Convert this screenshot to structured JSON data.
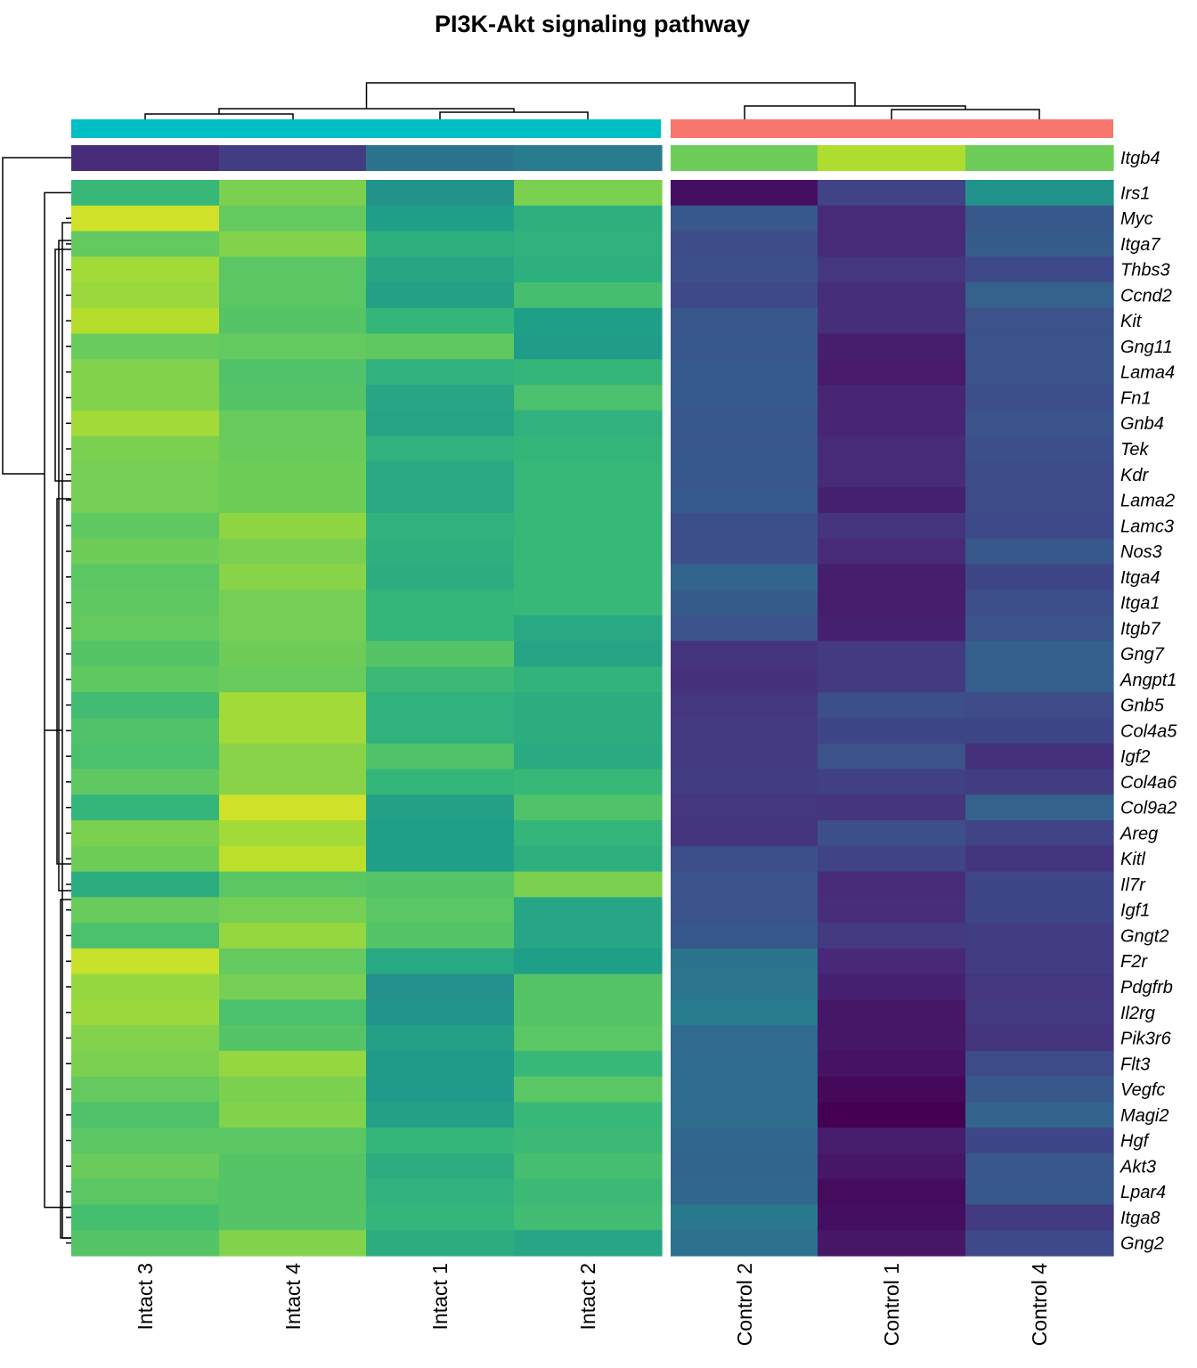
{
  "chart_data": {
    "type": "heatmap",
    "title": "PI3K-Akt signaling pathway",
    "colormap": "viridis",
    "columns": [
      "Intact 3",
      "Intact 4",
      "Intact 1",
      "Intact 2",
      "Control 2",
      "Control 1",
      "Control 4"
    ],
    "column_groups": [
      {
        "color": "#00BFC4",
        "columns": [
          "Intact 3",
          "Intact 4",
          "Intact 1",
          "Intact 2"
        ]
      },
      {
        "color": "#F8766D",
        "columns": [
          "Control 2",
          "Control 1",
          "Control 4"
        ]
      }
    ],
    "separate_row": {
      "name": "Itgb4",
      "values": [
        0.12,
        0.18,
        0.38,
        0.42,
        0.78,
        0.88,
        0.78
      ]
    },
    "rows": [
      {
        "name": "Irs1",
        "values": [
          0.67,
          0.8,
          0.51,
          0.8,
          0.04,
          0.2,
          0.51
        ]
      },
      {
        "name": "Myc",
        "values": [
          0.93,
          0.76,
          0.56,
          0.63,
          0.27,
          0.12,
          0.27
        ]
      },
      {
        "name": "Itga7",
        "values": [
          0.76,
          0.81,
          0.63,
          0.64,
          0.23,
          0.12,
          0.29
        ]
      },
      {
        "name": "Thbs3",
        "values": [
          0.86,
          0.74,
          0.59,
          0.63,
          0.24,
          0.16,
          0.22
        ]
      },
      {
        "name": "Ccnd2",
        "values": [
          0.85,
          0.74,
          0.57,
          0.7,
          0.22,
          0.13,
          0.31
        ]
      },
      {
        "name": "Kit",
        "values": [
          0.89,
          0.73,
          0.66,
          0.56,
          0.27,
          0.13,
          0.25
        ]
      },
      {
        "name": "Gng11",
        "values": [
          0.77,
          0.76,
          0.75,
          0.55,
          0.27,
          0.08,
          0.26
        ]
      },
      {
        "name": "Lama4",
        "values": [
          0.81,
          0.72,
          0.64,
          0.66,
          0.28,
          0.07,
          0.26
        ]
      },
      {
        "name": "Fn1",
        "values": [
          0.81,
          0.73,
          0.59,
          0.71,
          0.28,
          0.1,
          0.24
        ]
      },
      {
        "name": "Gnb4",
        "values": [
          0.86,
          0.77,
          0.58,
          0.64,
          0.27,
          0.1,
          0.26
        ]
      },
      {
        "name": "Tek",
        "values": [
          0.8,
          0.77,
          0.64,
          0.66,
          0.27,
          0.12,
          0.24
        ]
      },
      {
        "name": "Kdr",
        "values": [
          0.79,
          0.78,
          0.6,
          0.67,
          0.27,
          0.12,
          0.23
        ]
      },
      {
        "name": "Lama2",
        "values": [
          0.79,
          0.78,
          0.6,
          0.67,
          0.28,
          0.09,
          0.23
        ]
      },
      {
        "name": "Lamc3",
        "values": [
          0.75,
          0.83,
          0.64,
          0.67,
          0.24,
          0.15,
          0.22
        ]
      },
      {
        "name": "Nos3",
        "values": [
          0.78,
          0.8,
          0.63,
          0.67,
          0.24,
          0.12,
          0.27
        ]
      },
      {
        "name": "Itga4",
        "values": [
          0.74,
          0.82,
          0.62,
          0.67,
          0.32,
          0.08,
          0.21
        ]
      },
      {
        "name": "Itga1",
        "values": [
          0.75,
          0.79,
          0.66,
          0.67,
          0.29,
          0.08,
          0.24
        ]
      },
      {
        "name": "Itgb7",
        "values": [
          0.76,
          0.79,
          0.66,
          0.6,
          0.26,
          0.09,
          0.26
        ]
      },
      {
        "name": "Gng7",
        "values": [
          0.73,
          0.78,
          0.73,
          0.58,
          0.15,
          0.17,
          0.3
        ]
      },
      {
        "name": "Angpt1",
        "values": [
          0.75,
          0.77,
          0.68,
          0.65,
          0.14,
          0.17,
          0.3
        ]
      },
      {
        "name": "Gnb5",
        "values": [
          0.69,
          0.86,
          0.64,
          0.62,
          0.16,
          0.24,
          0.23
        ]
      },
      {
        "name": "Col4a5",
        "values": [
          0.72,
          0.86,
          0.64,
          0.62,
          0.17,
          0.21,
          0.21
        ]
      },
      {
        "name": "Igf2",
        "values": [
          0.71,
          0.82,
          0.72,
          0.61,
          0.17,
          0.25,
          0.14
        ]
      },
      {
        "name": "Col4a6",
        "values": [
          0.75,
          0.82,
          0.66,
          0.67,
          0.18,
          0.19,
          0.18
        ]
      },
      {
        "name": "Col9a2",
        "values": [
          0.66,
          0.93,
          0.57,
          0.72,
          0.16,
          0.15,
          0.31
        ]
      },
      {
        "name": "Areg",
        "values": [
          0.8,
          0.86,
          0.56,
          0.66,
          0.15,
          0.24,
          0.2
        ]
      },
      {
        "name": "Kitl",
        "values": [
          0.78,
          0.9,
          0.56,
          0.63,
          0.24,
          0.2,
          0.15
        ]
      },
      {
        "name": "Il7r",
        "values": [
          0.62,
          0.74,
          0.73,
          0.8,
          0.26,
          0.12,
          0.21
        ]
      },
      {
        "name": "Igf1",
        "values": [
          0.77,
          0.79,
          0.74,
          0.59,
          0.26,
          0.13,
          0.21
        ]
      },
      {
        "name": "Gngt2",
        "values": [
          0.71,
          0.84,
          0.73,
          0.59,
          0.27,
          0.17,
          0.18
        ]
      },
      {
        "name": "F2r",
        "values": [
          0.92,
          0.76,
          0.6,
          0.56,
          0.38,
          0.11,
          0.18
        ]
      },
      {
        "name": "Pdgfrb",
        "values": [
          0.84,
          0.79,
          0.5,
          0.73,
          0.39,
          0.09,
          0.16
        ]
      },
      {
        "name": "Il2rg",
        "values": [
          0.85,
          0.71,
          0.52,
          0.73,
          0.41,
          0.06,
          0.17
        ]
      },
      {
        "name": "Pik3r6",
        "values": [
          0.81,
          0.73,
          0.57,
          0.74,
          0.34,
          0.06,
          0.15
        ]
      },
      {
        "name": "Flt3",
        "values": [
          0.8,
          0.84,
          0.54,
          0.67,
          0.35,
          0.05,
          0.23
        ]
      },
      {
        "name": "Vegfc",
        "values": [
          0.76,
          0.8,
          0.54,
          0.74,
          0.35,
          0.02,
          0.27
        ]
      },
      {
        "name": "Magi2",
        "values": [
          0.72,
          0.81,
          0.57,
          0.67,
          0.35,
          0.0,
          0.32
        ]
      },
      {
        "name": "Hgf",
        "values": [
          0.74,
          0.74,
          0.66,
          0.68,
          0.33,
          0.08,
          0.21
        ]
      },
      {
        "name": "Akt3",
        "values": [
          0.77,
          0.73,
          0.62,
          0.7,
          0.32,
          0.06,
          0.27
        ]
      },
      {
        "name": "Lpar4",
        "values": [
          0.74,
          0.73,
          0.64,
          0.68,
          0.33,
          0.03,
          0.27
        ]
      },
      {
        "name": "Itga8",
        "values": [
          0.7,
          0.73,
          0.66,
          0.69,
          0.4,
          0.04,
          0.17
        ]
      },
      {
        "name": "Gng2",
        "values": [
          0.73,
          0.81,
          0.62,
          0.59,
          0.37,
          0.06,
          0.22
        ]
      }
    ]
  }
}
